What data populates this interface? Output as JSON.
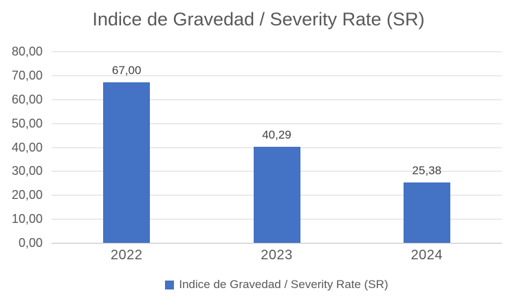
{
  "chart_data": {
    "type": "bar",
    "title": "Indice de Gravedad / Severity Rate (SR)",
    "categories": [
      "2022",
      "2023",
      "2024"
    ],
    "series": [
      {
        "name": "Indice de Gravedad / Severity Rate (SR)",
        "values": [
          67.0,
          40.29,
          25.38
        ],
        "data_labels": [
          "67,00",
          "40,29",
          "25,38"
        ]
      }
    ],
    "xlabel": "",
    "ylabel": "",
    "ylim": [
      0,
      80
    ],
    "ytick_step": 10,
    "yticks": [
      {
        "value": 0,
        "label": "0,00"
      },
      {
        "value": 10,
        "label": "10,00"
      },
      {
        "value": 20,
        "label": "20,00"
      },
      {
        "value": 30,
        "label": "30,00"
      },
      {
        "value": 40,
        "label": "40,00"
      },
      {
        "value": 50,
        "label": "50,00"
      },
      {
        "value": 60,
        "label": "60,00"
      },
      {
        "value": 70,
        "label": "70,00"
      },
      {
        "value": 80,
        "label": "80,00"
      }
    ],
    "grid": true,
    "legend_position": "bottom"
  },
  "colors": {
    "bar": "#4472C4",
    "title_text": "#595959",
    "axis_text": "#595959",
    "data_label_text": "#404040",
    "gridline": "#D9D9D9",
    "axis_line": "#BFBFBF",
    "background": "#FFFFFF"
  }
}
